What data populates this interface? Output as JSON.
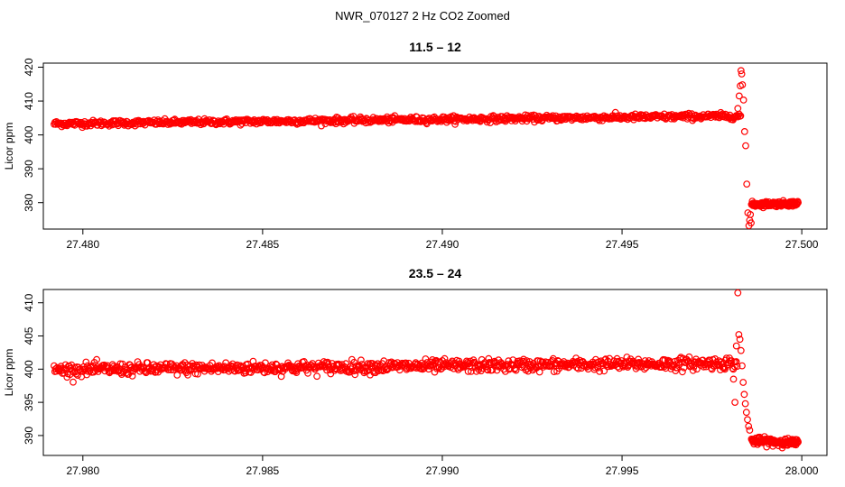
{
  "figure": {
    "title": "NWR_070127  2 Hz CO2 Zoomed"
  },
  "chart_data": [
    {
      "type": "scatter",
      "title": "11.5 – 12",
      "xlabel": "",
      "ylabel": "Licor ppm",
      "xlim": [
        27.4789,
        27.5007
      ],
      "ylim": [
        372.2,
        421.2
      ],
      "xticks": [
        27.48,
        27.485,
        27.49,
        27.495,
        27.5
      ],
      "xtick_labels": [
        "27.480",
        "27.485",
        "27.490",
        "27.495",
        "27.500"
      ],
      "yticks": [
        380,
        390,
        400,
        410,
        420
      ],
      "ytick_labels": [
        "380",
        "390",
        "400",
        "410",
        "420"
      ],
      "marker": "open-circle",
      "color": "#ff0000",
      "grid": false,
      "series": [
        {
          "x_start": 27.4792,
          "x_end": 27.4983,
          "n_points": 900,
          "y_start": 403.3,
          "y_end": 405.6,
          "noise": 0.8
        },
        {
          "points": [
            [
              27.49822,
              407.8
            ],
            [
              27.49826,
              411.5
            ],
            [
              27.49829,
              414.5
            ],
            [
              27.49831,
              419.0
            ],
            [
              27.49833,
              418.0
            ],
            [
              27.49835,
              414.8
            ],
            [
              27.49838,
              410.3
            ],
            [
              27.49841,
              401.0
            ],
            [
              27.49844,
              396.8
            ],
            [
              27.49847,
              385.5
            ],
            [
              27.4985,
              377.0
            ],
            [
              27.49853,
              373.2
            ],
            [
              27.49855,
              374.8
            ],
            [
              27.49857,
              376.5
            ],
            [
              27.49859,
              374.0
            ]
          ]
        },
        {
          "x_start": 27.4986,
          "x_end": 27.4999,
          "n_points": 120,
          "y_start": 379.5,
          "y_end": 379.8,
          "noise": 0.7
        }
      ]
    },
    {
      "type": "scatter",
      "title": "23.5 – 24",
      "xlabel": "",
      "ylabel": "Licor ppm",
      "xlim": [
        27.9789,
        28.0007
      ],
      "ylim": [
        387.0,
        412.0
      ],
      "xticks": [
        27.98,
        27.985,
        27.99,
        27.995,
        28.0
      ],
      "xtick_labels": [
        "27.980",
        "27.985",
        "27.990",
        "27.995",
        "28.000"
      ],
      "yticks": [
        390,
        395,
        400,
        405,
        410
      ],
      "ytick_labels": [
        "390",
        "395",
        "400",
        "405",
        "410"
      ],
      "marker": "open-circle",
      "color": "#ff0000",
      "grid": false,
      "series": [
        {
          "x_start": 27.9792,
          "x_end": 27.9982,
          "n_points": 900,
          "y_start": 399.9,
          "y_end": 400.9,
          "noise": 0.85
        },
        {
          "points": [
            [
              27.9981,
              398.5
            ],
            [
              27.99814,
              395.0
            ],
            [
              27.99818,
              403.5
            ],
            [
              27.99822,
              411.5
            ],
            [
              27.99825,
              405.2
            ],
            [
              27.99828,
              404.5
            ],
            [
              27.99831,
              402.8
            ],
            [
              27.99834,
              400.5
            ],
            [
              27.99837,
              398.0
            ],
            [
              27.9984,
              396.2
            ],
            [
              27.99843,
              394.8
            ],
            [
              27.99846,
              393.5
            ],
            [
              27.99849,
              392.4
            ],
            [
              27.99852,
              391.4
            ],
            [
              27.99855,
              390.8
            ]
          ]
        },
        {
          "x_start": 27.9986,
          "x_end": 27.9999,
          "n_points": 130,
          "y_start": 389.2,
          "y_end": 388.9,
          "noise": 0.5
        }
      ]
    }
  ]
}
